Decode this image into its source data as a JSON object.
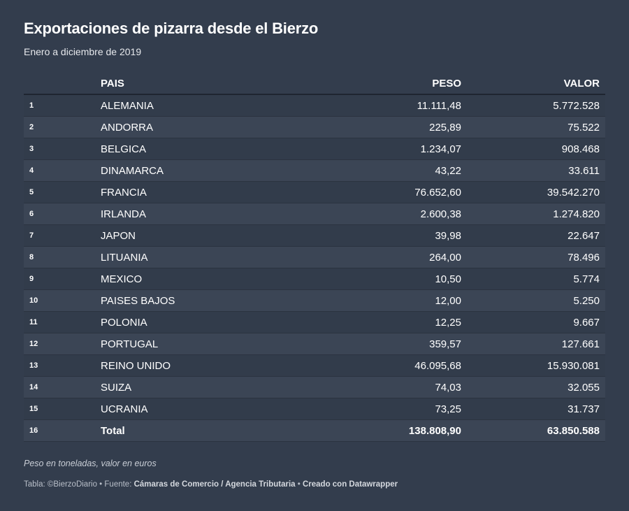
{
  "chart_data": {
    "type": "table",
    "title": "Exportaciones de pizarra desde el Bierzo",
    "subtitle": "Enero a diciembre de 2019",
    "columns": [
      "",
      "PAIS",
      "PESO",
      "VALOR"
    ],
    "rows": [
      {
        "idx": "1",
        "pais": "ALEMANIA",
        "peso": "11.111,48",
        "valor": "5.772.528"
      },
      {
        "idx": "2",
        "pais": "ANDORRA",
        "peso": "225,89",
        "valor": "75.522"
      },
      {
        "idx": "3",
        "pais": "BELGICA",
        "peso": "1.234,07",
        "valor": "908.468"
      },
      {
        "idx": "4",
        "pais": "DINAMARCA",
        "peso": "43,22",
        "valor": "33.611"
      },
      {
        "idx": "5",
        "pais": "FRANCIA",
        "peso": "76.652,60",
        "valor": "39.542.270"
      },
      {
        "idx": "6",
        "pais": "IRLANDA",
        "peso": "2.600,38",
        "valor": "1.274.820"
      },
      {
        "idx": "7",
        "pais": "JAPON",
        "peso": "39,98",
        "valor": "22.647"
      },
      {
        "idx": "8",
        "pais": "LITUANIA",
        "peso": "264,00",
        "valor": "78.496"
      },
      {
        "idx": "9",
        "pais": "MEXICO",
        "peso": "10,50",
        "valor": "5.774"
      },
      {
        "idx": "10",
        "pais": "PAISES BAJOS",
        "peso": "12,00",
        "valor": "5.250"
      },
      {
        "idx": "11",
        "pais": "POLONIA",
        "peso": "12,25",
        "valor": "9.667"
      },
      {
        "idx": "12",
        "pais": "PORTUGAL",
        "peso": "359,57",
        "valor": "127.661"
      },
      {
        "idx": "13",
        "pais": "REINO UNIDO",
        "peso": "46.095,68",
        "valor": "15.930.081"
      },
      {
        "idx": "14",
        "pais": "SUIZA",
        "peso": "74,03",
        "valor": "32.055"
      },
      {
        "idx": "15",
        "pais": "UCRANIA",
        "peso": "73,25",
        "valor": "31.737"
      },
      {
        "idx": "16",
        "pais": "Total",
        "peso": "138.808,90",
        "valor": "63.850.588"
      }
    ],
    "note": "Peso en toneladas, valor en euros"
  },
  "footer": {
    "prefix": "Tabla: ©BierzoDiario • Fuente: ",
    "source": "Cámaras de Comercio / Agencia Tributaria",
    "separator": " • ",
    "credit": "Creado con Datawrapper"
  },
  "colors": {
    "background": "#333d4d",
    "row_even": "#3b4555",
    "row_odd": "#323c4b",
    "text": "#ffffff"
  }
}
